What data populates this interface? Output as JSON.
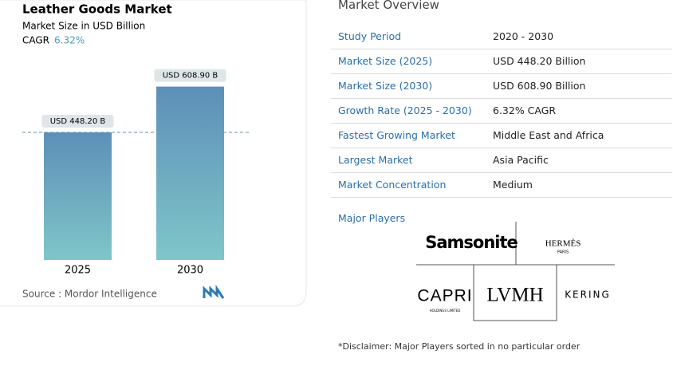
{
  "chart_data": {
    "type": "bar",
    "title": "Leather Goods Market",
    "subtitle": "Market Size in USD Billion",
    "cagr_label": "CAGR",
    "cagr": "6.32%",
    "categories": [
      "2025",
      "2030"
    ],
    "values": [
      448.2,
      608.9
    ],
    "value_labels": [
      "USD 448.20 B",
      "USD 608.90 B"
    ],
    "source": "Source :  Mordor Intelligence"
  },
  "overview": {
    "title": "Market Overview",
    "rows": [
      [
        "Study Period",
        "2020 - 2030"
      ],
      [
        "Market Size (2025)",
        "USD 448.20 Billion"
      ],
      [
        "Market Size (2030)",
        "USD 608.90 Billion"
      ],
      [
        "Growth Rate (2025 - 2030)",
        "6.32% CAGR"
      ],
      [
        "Fastest Growing Market",
        "Middle East and Africa"
      ],
      [
        "Largest Market",
        "Asia Pacific"
      ],
      [
        "Market Concentration",
        "Medium"
      ]
    ]
  },
  "major_players": {
    "title": "Major Players",
    "logos": [
      {
        "name": "Samsonite"
      },
      {
        "name": "HERMÈS",
        "sub": "PARIS"
      },
      {
        "name": "CAPRI",
        "sub": "HOLDINGS LIMITED"
      },
      {
        "name": "LVMH"
      },
      {
        "name": "KERING"
      }
    ]
  },
  "disclaimer": "*Disclaimer: Major Players sorted in no particular order"
}
